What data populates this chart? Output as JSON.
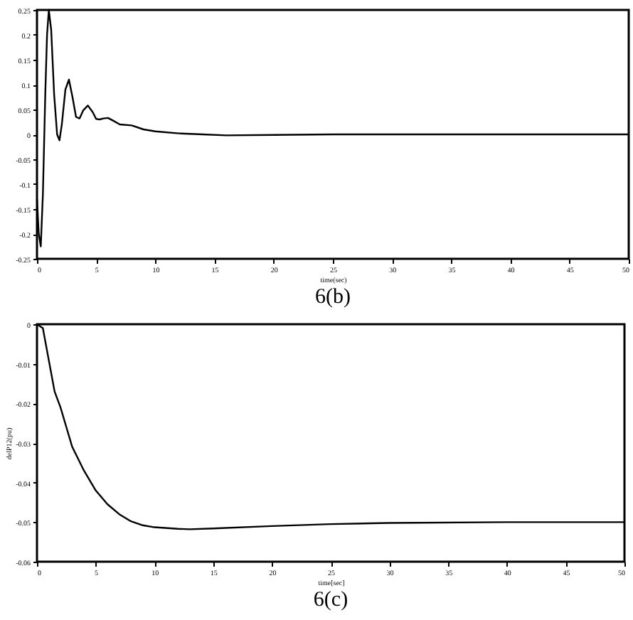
{
  "chart_data": [
    {
      "type": "line",
      "title": "6(b)",
      "xlabel": "time(sec)",
      "xlim": [
        0,
        50
      ],
      "xticks": [
        0,
        5,
        10,
        15,
        20,
        25,
        30,
        35,
        40,
        45,
        50
      ],
      "ylim": [
        -0.25,
        0.25
      ],
      "yticks": [
        -0.25,
        -0.2,
        -0.15,
        -0.1,
        -0.05,
        0,
        0.05,
        0.1,
        0.15,
        0.2,
        0.25
      ],
      "grid": false,
      "series": [
        {
          "color": "#000000",
          "x": [
            0,
            0.15,
            0.32,
            0.5,
            0.7,
            0.85,
            1.0,
            1.2,
            1.45,
            1.7,
            1.9,
            2.1,
            2.4,
            2.7,
            3.0,
            3.3,
            3.6,
            3.9,
            4.3,
            4.7,
            5.0,
            5.3,
            5.6,
            6.0,
            6.4,
            7.0,
            8.0,
            9.0,
            10,
            12,
            14,
            16,
            20,
            25,
            30,
            40,
            50
          ],
          "values": [
            -0.13,
            -0.2,
            -0.225,
            -0.12,
            0.08,
            0.2,
            0.25,
            0.21,
            0.08,
            0.0,
            -0.012,
            0.02,
            0.09,
            0.11,
            0.075,
            0.035,
            0.032,
            0.048,
            0.058,
            0.045,
            0.031,
            0.03,
            0.032,
            0.033,
            0.028,
            0.02,
            0.018,
            0.01,
            0.006,
            0.002,
            0.0,
            -0.002,
            -0.001,
            0,
            0,
            0,
            0
          ]
        }
      ]
    },
    {
      "type": "line",
      "title": "6(c)",
      "xlabel": "time[sec]",
      "ylabel": "delP12(pu)",
      "xlim": [
        0,
        50
      ],
      "xticks": [
        0,
        5,
        10,
        15,
        20,
        25,
        30,
        35,
        40,
        45,
        50
      ],
      "ylim": [
        -0.06,
        0
      ],
      "yticks": [
        -0.06,
        -0.05,
        -0.04,
        -0.03,
        -0.02,
        -0.01,
        0
      ],
      "grid": false,
      "series": [
        {
          "color": "#000000",
          "x": [
            0,
            0.5,
            1,
            1.5,
            2,
            2.5,
            3,
            4,
            5,
            6,
            7,
            8,
            9,
            10,
            12,
            13,
            15,
            20,
            25,
            30,
            40,
            50
          ],
          "values": [
            0,
            -0.001,
            -0.009,
            -0.017,
            -0.021,
            -0.026,
            -0.031,
            -0.037,
            -0.042,
            -0.0455,
            -0.048,
            -0.0498,
            -0.0508,
            -0.0513,
            -0.0517,
            -0.0518,
            -0.0516,
            -0.051,
            -0.0505,
            -0.0502,
            -0.05,
            -0.05
          ]
        }
      ]
    }
  ]
}
